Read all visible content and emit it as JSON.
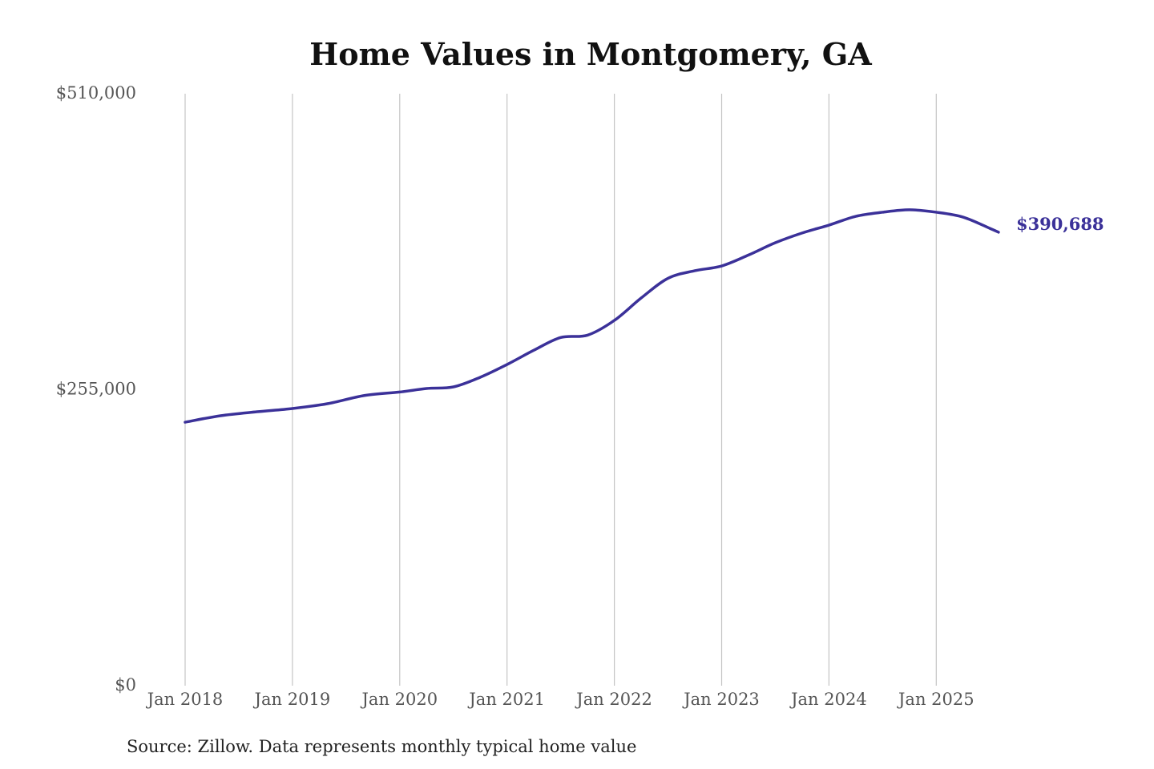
{
  "chart_data": {
    "type": "line",
    "title": "Home Values in Montgomery, GA",
    "xlabel": "",
    "ylabel": "",
    "ylim": [
      0,
      510000
    ],
    "y_ticks": [
      "$510,000",
      "$255,000",
      "$0"
    ],
    "y_tick_values": [
      510000,
      255000,
      0
    ],
    "x_ticks": [
      "Jan 2018",
      "Jan 2019",
      "Jan 2020",
      "Jan 2021",
      "Jan 2022",
      "Jan 2023",
      "Jan 2024",
      "Jan 2025"
    ],
    "x_tick_values": [
      2018,
      2019,
      2020,
      2021,
      2022,
      2023,
      2024,
      2025
    ],
    "grid": "vertical lines at x ticks",
    "line_color": "#3b3199",
    "end_label": "$390,688",
    "series": [
      {
        "x": [
          2018.0,
          2018.33,
          2018.67,
          2019.0,
          2019.33,
          2019.67,
          2020.0,
          2020.25,
          2020.5,
          2020.75,
          2021.0,
          2021.25,
          2021.5,
          2021.75,
          2022.0,
          2022.25,
          2022.5,
          2022.75,
          2023.0,
          2023.25,
          2023.5,
          2023.75,
          2024.0,
          2024.25,
          2024.5,
          2024.75,
          2025.0,
          2025.25,
          2025.5,
          2025.58
        ],
        "values": [
          227000,
          232600,
          236000,
          238800,
          243000,
          250000,
          253000,
          256000,
          257400,
          265700,
          276700,
          289000,
          300000,
          302000,
          314700,
          334000,
          351000,
          357500,
          361600,
          371000,
          381600,
          390000,
          396800,
          404400,
          407900,
          410000,
          407900,
          403700,
          394000,
          390688
        ]
      }
    ]
  },
  "source": "Source: Zillow. Data represents monthly typical home value"
}
